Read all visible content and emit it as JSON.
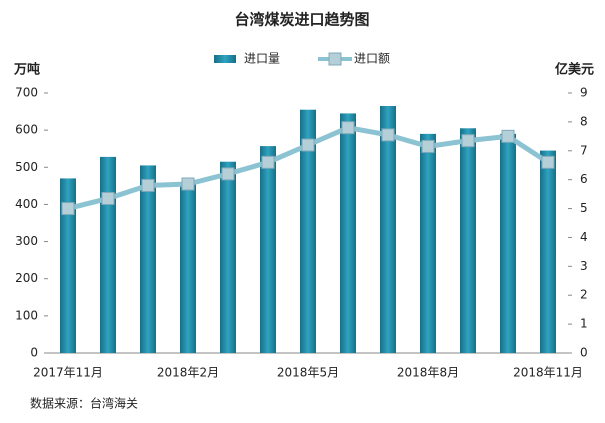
{
  "chart_data": {
    "type": "bar_line",
    "title": "台湾煤炭进口趋势图",
    "y_label": "万吨",
    "y2_label": "亿美元",
    "source": "数据来源：台湾海关",
    "categories": [
      "2017年11月",
      null,
      null,
      "2018年2月",
      null,
      null,
      "2018年5月",
      null,
      null,
      "2018年8月",
      null,
      null,
      "2018年11月"
    ],
    "series": [
      {
        "name": "进口量",
        "type": "bar",
        "color": "#1f8aa6",
        "values": [
          470,
          528,
          505,
          455,
          515,
          557,
          655,
          645,
          665,
          590,
          605,
          590,
          545
        ]
      },
      {
        "name": "进口额",
        "type": "line",
        "axis": "y2",
        "color": "#8cc3d3",
        "values": [
          5.0,
          5.35,
          5.8,
          5.85,
          6.2,
          6.6,
          7.2,
          7.8,
          7.55,
          7.15,
          7.35,
          7.5,
          6.6
        ]
      }
    ],
    "ylim": [
      0,
      700
    ],
    "yticks": [
      0,
      100,
      200,
      300,
      400,
      500,
      600,
      700
    ],
    "y2lim": [
      0,
      9
    ],
    "y2ticks": [
      0,
      1,
      2,
      3,
      4,
      5,
      6,
      7,
      8,
      9
    ],
    "legend": "top"
  }
}
